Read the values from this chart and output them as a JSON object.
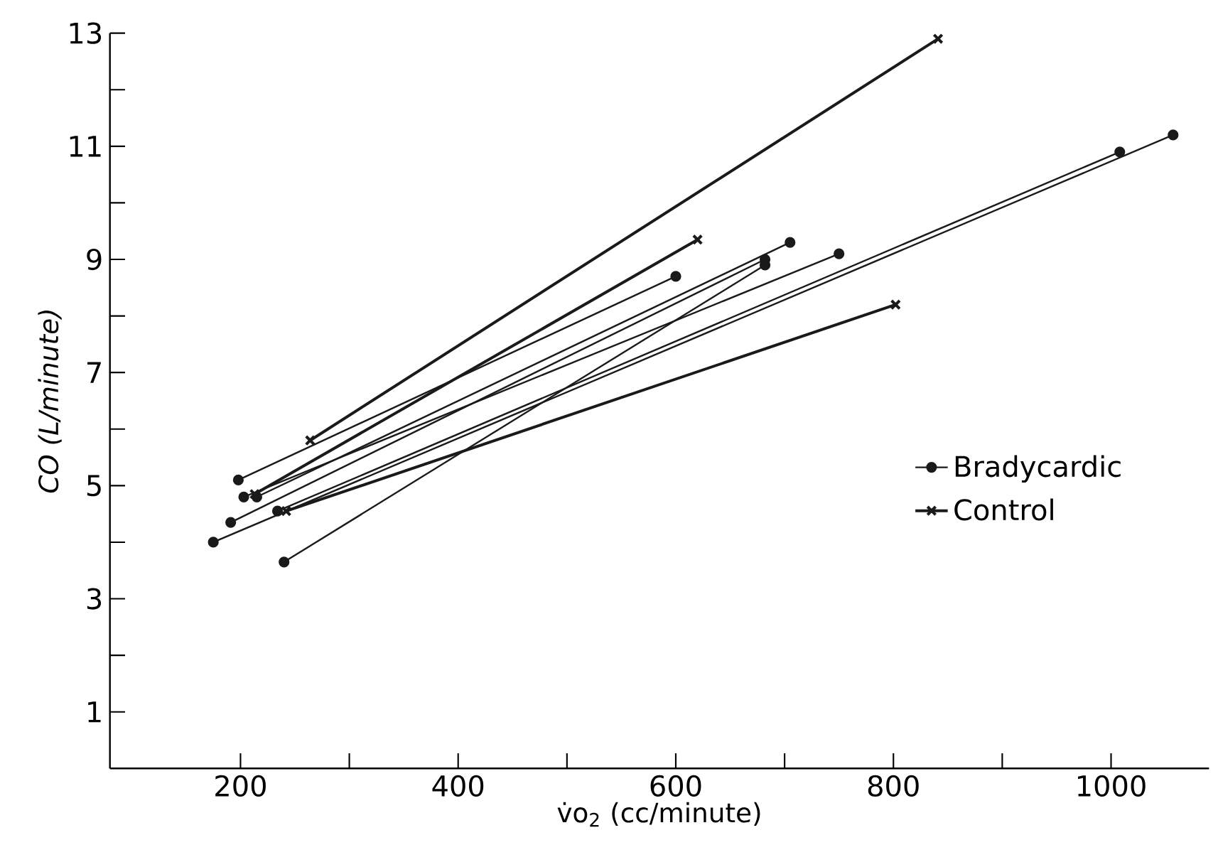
{
  "chart_data": {
    "type": "line",
    "xlabel": "v̇o$_{2}$ (cc/minute)",
    "ylabel": "CO (L/minute)",
    "xlim": [
      80,
      1090
    ],
    "ylim": [
      0,
      13
    ],
    "xticks": [
      200,
      {
        "value": 300,
        "label": null
      },
      400,
      {
        "value": 500,
        "label": null
      },
      600,
      {
        "value": 700,
        "label": null
      },
      800,
      {
        "value": 900,
        "label": null
      },
      1000
    ],
    "yticks": [
      1,
      {
        "value": 2,
        "label": null
      },
      3,
      {
        "value": 4,
        "label": null
      },
      5,
      {
        "value": 6,
        "label": null
      },
      7,
      {
        "value": 8,
        "label": null
      },
      9,
      {
        "value": 10,
        "label": null
      },
      11,
      {
        "value": 12,
        "label": null
      },
      13
    ],
    "legend": "right",
    "grid": false,
    "series": [
      {
        "name": "Bradycardic",
        "color": "#1a1a1a",
        "marker": "circle",
        "x": [
          198,
          600
        ],
        "values": [
          5.1,
          8.7
        ]
      },
      {
        "color": "#1a1a1a",
        "marker": "circle",
        "x": [
          175,
          1057
        ],
        "values": [
          4.0,
          11.2
        ]
      },
      {
        "color": "#1a1a1a",
        "marker": "circle",
        "x": [
          191,
          682
        ],
        "values": [
          4.35,
          9.0
        ]
      },
      {
        "color": "#1a1a1a",
        "marker": "circle",
        "x": [
          203,
          750
        ],
        "values": [
          4.8,
          9.1
        ]
      },
      {
        "color": "#1a1a1a",
        "marker": "circle",
        "x": [
          215,
          705
        ],
        "values": [
          4.8,
          9.3
        ]
      },
      {
        "color": "#1a1a1a",
        "marker": "circle",
        "x": [
          234,
          1008
        ],
        "values": [
          4.55,
          10.9
        ]
      },
      {
        "color": "#1a1a1a",
        "marker": "circle",
        "x": [
          240,
          682
        ],
        "values": [
          3.65,
          8.9
        ]
      },
      {
        "name": "Control",
        "color": "#1a1a1a",
        "marker": "cross",
        "x": [
          264,
          841
        ],
        "values": [
          5.8,
          12.9
        ]
      },
      {
        "color": "#1a1a1a",
        "marker": "cross",
        "x": [
          213,
          620
        ],
        "values": [
          4.85,
          9.35
        ]
      },
      {
        "color": "#1a1a1a",
        "marker": "cross",
        "x": [
          242,
          802
        ],
        "values": [
          4.55,
          8.2
        ]
      }
    ]
  }
}
